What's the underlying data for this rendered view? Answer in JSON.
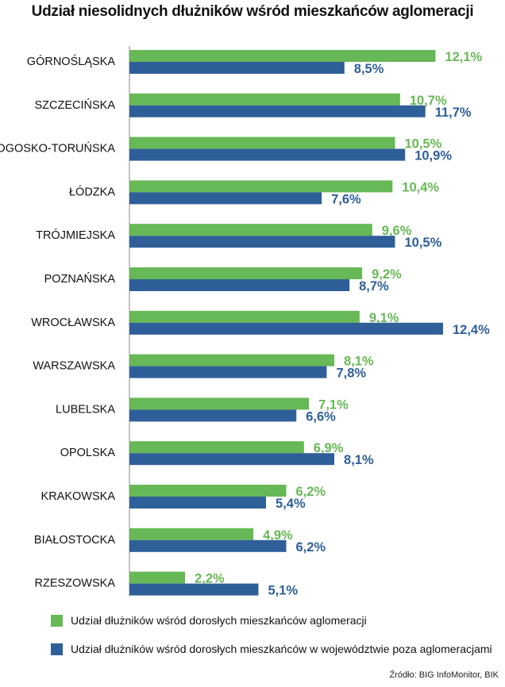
{
  "chart_data": {
    "type": "bar",
    "orientation": "horizontal",
    "title": "Udział niesolidnych dłużników wśród mieszkańców aglomeracji",
    "categories": [
      "GÓRNOŚLĄSKA",
      "SZCZECIŃSKA",
      "BYDGOSKO-TORUŃSKA",
      "ŁÓDZKA",
      "TRÓJMIEJSKA",
      "POZNAŃSKA",
      "WROCŁAWSKA",
      "WARSZAWSKA",
      "LUBELSKA",
      "OPOLSKA",
      "KRAKOWSKA",
      "BIAŁOSTOCKA",
      "RZESZOWSKA"
    ],
    "series": [
      {
        "name": "Udział dłużników wśród dorosłych mieszkańców aglomeracji",
        "color": "#67b856",
        "values": [
          12.1,
          10.7,
          10.5,
          10.4,
          9.6,
          9.2,
          9.1,
          8.1,
          7.1,
          6.9,
          6.2,
          4.9,
          2.2
        ],
        "labels": [
          "12,1%",
          "10,7%",
          "10,5%",
          "10,4%",
          "9,6%",
          "9,2%",
          "9,1%",
          "8,1%",
          "7,1%",
          "6,9%",
          "6,2%",
          "4,9%",
          "2,2%"
        ]
      },
      {
        "name": "Udział dłużników wśród dorosłych mieszkańców w województwie poza aglomeracjami",
        "color": "#2f5f98",
        "values": [
          8.5,
          11.7,
          10.9,
          7.6,
          10.5,
          8.7,
          12.4,
          7.8,
          6.6,
          8.1,
          5.4,
          6.2,
          5.1
        ],
        "labels": [
          "8,5%",
          "11,7%",
          "10,9%",
          "7,6%",
          "10,5%",
          "8,7%",
          "12,4%",
          "7,8%",
          "6,6%",
          "8,1%",
          "5,4%",
          "6,2%",
          "5,1%"
        ]
      }
    ],
    "xlim": [
      0,
      12.4
    ],
    "legend_position": "bottom",
    "grid": false
  },
  "source": "Źródło: BIG InfoMonitor, BIK"
}
